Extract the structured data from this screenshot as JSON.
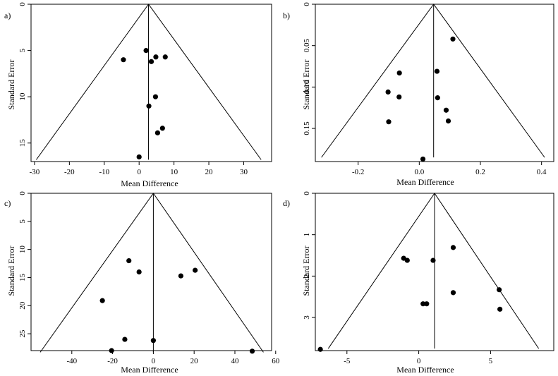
{
  "figure": {
    "description_labels": [
      "a)",
      "b)",
      "c)",
      "d)"
    ]
  },
  "chart_data": [
    {
      "type": "scatter",
      "panel_label": "a)",
      "subtype": "funnel",
      "xlabel": "Mean Difference",
      "ylabel": "Standard Error",
      "xlim": [
        -31,
        38
      ],
      "ylim": [
        0,
        17
      ],
      "y_reversed": true,
      "xticks": [
        -30,
        -20,
        -10,
        0,
        10,
        20,
        30
      ],
      "yticks": [
        0,
        5,
        10,
        15
      ],
      "pooled_estimate": 2.7,
      "funnel": {
        "apex": [
          2.7,
          0
        ],
        "base_left": [
          -29.5,
          16.8
        ],
        "base_right": [
          35.0,
          16.8
        ]
      },
      "points": [
        {
          "x": 2.0,
          "y": 5.0
        },
        {
          "x": -4.5,
          "y": 6.0
        },
        {
          "x": 3.5,
          "y": 6.2
        },
        {
          "x": 4.8,
          "y": 5.7
        },
        {
          "x": 7.5,
          "y": 5.7
        },
        {
          "x": 4.7,
          "y": 10.0
        },
        {
          "x": 2.8,
          "y": 11.0
        },
        {
          "x": 6.7,
          "y": 13.4
        },
        {
          "x": 5.3,
          "y": 13.9
        },
        {
          "x": 0.0,
          "y": 16.5
        }
      ]
    },
    {
      "type": "scatter",
      "panel_label": "b)",
      "subtype": "funnel",
      "xlabel": "Mean Difference",
      "ylabel": "Standard Error",
      "xlim": [
        -0.34,
        0.44
      ],
      "ylim": [
        0,
        0.19
      ],
      "y_reversed": true,
      "xticks": [
        -0.2,
        0.0,
        0.2,
        0.4
      ],
      "xtick_labels": [
        "-0.2",
        "0.0",
        "0.2",
        "0.4"
      ],
      "yticks": [
        0.05,
        0.1,
        0.15
      ],
      "ytick_labels": [
        "0.05",
        "0.10",
        "0.15"
      ],
      "ytick0_label": "0",
      "pooled_estimate": 0.047,
      "funnel": {
        "apex": [
          0.047,
          0
        ],
        "base_left": [
          -0.32,
          0.185
        ],
        "base_right": [
          0.41,
          0.185
        ]
      },
      "points": [
        {
          "x": 0.11,
          "y": 0.042
        },
        {
          "x": -0.065,
          "y": 0.083
        },
        {
          "x": 0.058,
          "y": 0.081
        },
        {
          "x": -0.102,
          "y": 0.106
        },
        {
          "x": -0.066,
          "y": 0.112
        },
        {
          "x": 0.06,
          "y": 0.113
        },
        {
          "x": 0.088,
          "y": 0.128
        },
        {
          "x": -0.1,
          "y": 0.142
        },
        {
          "x": 0.095,
          "y": 0.141
        },
        {
          "x": 0.012,
          "y": 0.187
        }
      ]
    },
    {
      "type": "scatter",
      "panel_label": "c)",
      "subtype": "funnel",
      "xlabel": "Mean Difference",
      "ylabel": "Standard Error",
      "xlim": [
        -60,
        58
      ],
      "ylim": [
        0,
        28
      ],
      "y_reversed": true,
      "xticks": [
        -40,
        -20,
        0,
        20,
        40,
        60
      ],
      "yticks": [
        0,
        5,
        10,
        15,
        20,
        25
      ],
      "pooled_estimate": 0,
      "funnel": {
        "apex": [
          0,
          0
        ],
        "base_left": [
          -55.5,
          28.3
        ],
        "base_right": [
          54.0,
          28.3
        ]
      },
      "points": [
        {
          "x": -12.0,
          "y": 12.0
        },
        {
          "x": -7.0,
          "y": 14.0
        },
        {
          "x": 20.5,
          "y": 13.7
        },
        {
          "x": 13.5,
          "y": 14.7
        },
        {
          "x": -25.0,
          "y": 19.1
        },
        {
          "x": -14.0,
          "y": 26.0
        },
        {
          "x": 0.0,
          "y": 26.2
        },
        {
          "x": -20.5,
          "y": 28.0
        },
        {
          "x": 48.5,
          "y": 28.1
        }
      ]
    },
    {
      "type": "scatter",
      "panel_label": "d)",
      "subtype": "funnel",
      "xlabel": "Mean Difference",
      "ylabel": "Standard Error",
      "xlim": [
        -7.2,
        9.4
      ],
      "ylim": [
        0,
        3.8
      ],
      "y_reversed": true,
      "xticks": [
        -5,
        0,
        5
      ],
      "yticks": [
        0,
        1,
        2,
        3
      ],
      "pooled_estimate": 1.1,
      "funnel": {
        "apex": [
          1.1,
          0
        ],
        "base_left": [
          -6.3,
          3.75
        ],
        "base_right": [
          8.35,
          3.75
        ]
      },
      "points": [
        {
          "x": 2.4,
          "y": 1.31
        },
        {
          "x": -1.05,
          "y": 1.57
        },
        {
          "x": -0.8,
          "y": 1.62
        },
        {
          "x": 1.0,
          "y": 1.62
        },
        {
          "x": 5.6,
          "y": 2.33
        },
        {
          "x": 2.4,
          "y": 2.4
        },
        {
          "x": 0.3,
          "y": 2.67
        },
        {
          "x": 0.55,
          "y": 2.67
        },
        {
          "x": 5.65,
          "y": 2.8
        },
        {
          "x": -6.85,
          "y": 3.77
        }
      ]
    }
  ]
}
